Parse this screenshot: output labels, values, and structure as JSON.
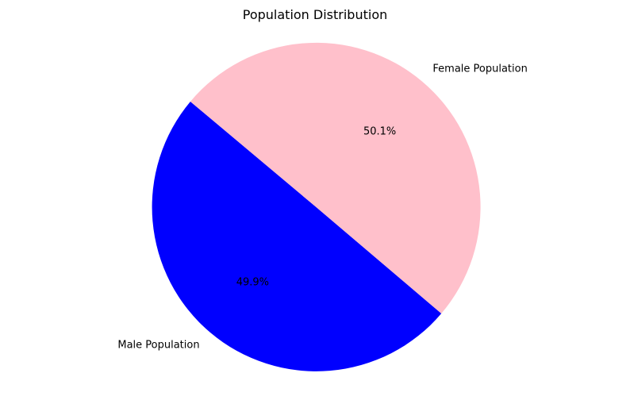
{
  "chart_data": {
    "type": "pie",
    "title": "Population Distribution",
    "categories": [
      "Male Population",
      "Female Population"
    ],
    "values": [
      49.9,
      50.1
    ],
    "percent_labels": [
      "49.9%",
      "50.1%"
    ],
    "colors": [
      "#0000ff",
      "#ffc0cb"
    ],
    "start_angle_deg": 140,
    "direction": "counterclockwise",
    "legend": "none"
  }
}
